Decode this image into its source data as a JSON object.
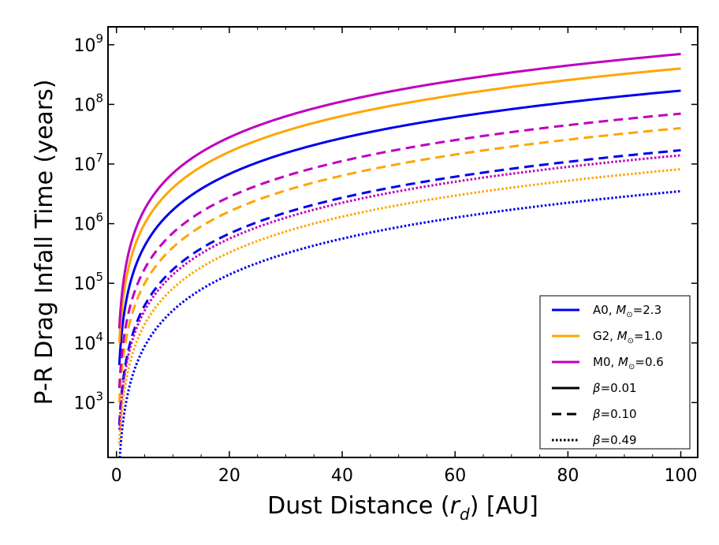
{
  "chart_data": {
    "type": "line",
    "title": "",
    "xlabel_parts": [
      "Dust Distance (",
      "r",
      "d",
      ") [AU]"
    ],
    "ylabel": "P-R Drag Infall Time (years)",
    "xlim": [
      -1.5,
      103
    ],
    "ylim": [
      120,
      2000000000
    ],
    "yscale": "log",
    "grid": false,
    "legend_placement": "lower-right",
    "xticks": [
      0,
      20,
      40,
      60,
      80,
      100
    ],
    "yticks": [
      {
        "value": 1000,
        "base": "10",
        "exp": "3"
      },
      {
        "value": 10000,
        "base": "10",
        "exp": "4"
      },
      {
        "value": 100000,
        "base": "10",
        "exp": "5"
      },
      {
        "value": 1000000,
        "base": "10",
        "exp": "6"
      },
      {
        "value": 10000000,
        "base": "10",
        "exp": "7"
      },
      {
        "value": 100000000,
        "base": "10",
        "exp": "8"
      },
      {
        "value": 1000000000,
        "base": "10",
        "exp": "9"
      }
    ],
    "model": "t = A * r^2",
    "stars": [
      {
        "name": "A0",
        "mass_label": "2.3",
        "color": "#0000ee"
      },
      {
        "name": "G2",
        "mass_label": "1.0",
        "color": "#ffa500"
      },
      {
        "name": "M0",
        "mass_label": "0.6",
        "color": "#bf00bf"
      }
    ],
    "betas": [
      {
        "label": "0.01",
        "style": "solid"
      },
      {
        "label": "0.10",
        "style": "dashed"
      },
      {
        "label": "0.49",
        "style": "dotted"
      }
    ],
    "series": [
      {
        "star": "A0",
        "beta": "0.01",
        "color": "#0000ee",
        "style": "solid",
        "x_range": [
          0.5,
          100
        ],
        "y_at_100": 170000000
      },
      {
        "star": "G2",
        "beta": "0.01",
        "color": "#ffa500",
        "style": "solid",
        "x_range": [
          0.5,
          100
        ],
        "y_at_100": 400000000
      },
      {
        "star": "M0",
        "beta": "0.01",
        "color": "#bf00bf",
        "style": "solid",
        "x_range": [
          0.5,
          100
        ],
        "y_at_100": 700000000
      },
      {
        "star": "A0",
        "beta": "0.10",
        "color": "#0000ee",
        "style": "dashed",
        "x_range": [
          0.5,
          100
        ],
        "y_at_100": 17000000
      },
      {
        "star": "G2",
        "beta": "0.10",
        "color": "#ffa500",
        "style": "dashed",
        "x_range": [
          0.5,
          100
        ],
        "y_at_100": 40000000
      },
      {
        "star": "M0",
        "beta": "0.10",
        "color": "#bf00bf",
        "style": "dashed",
        "x_range": [
          0.5,
          100
        ],
        "y_at_100": 70000000
      },
      {
        "star": "A0",
        "beta": "0.49",
        "color": "#0000ee",
        "style": "dotted",
        "x_range": [
          0.5,
          100
        ],
        "y_at_100": 3500000
      },
      {
        "star": "G2",
        "beta": "0.49",
        "color": "#ffa500",
        "style": "dotted",
        "x_range": [
          0.5,
          100
        ],
        "y_at_100": 8200000
      },
      {
        "star": "M0",
        "beta": "0.49",
        "color": "#bf00bf",
        "style": "dotted",
        "x_range": [
          0.5,
          100
        ],
        "y_at_100": 14000000
      }
    ]
  }
}
